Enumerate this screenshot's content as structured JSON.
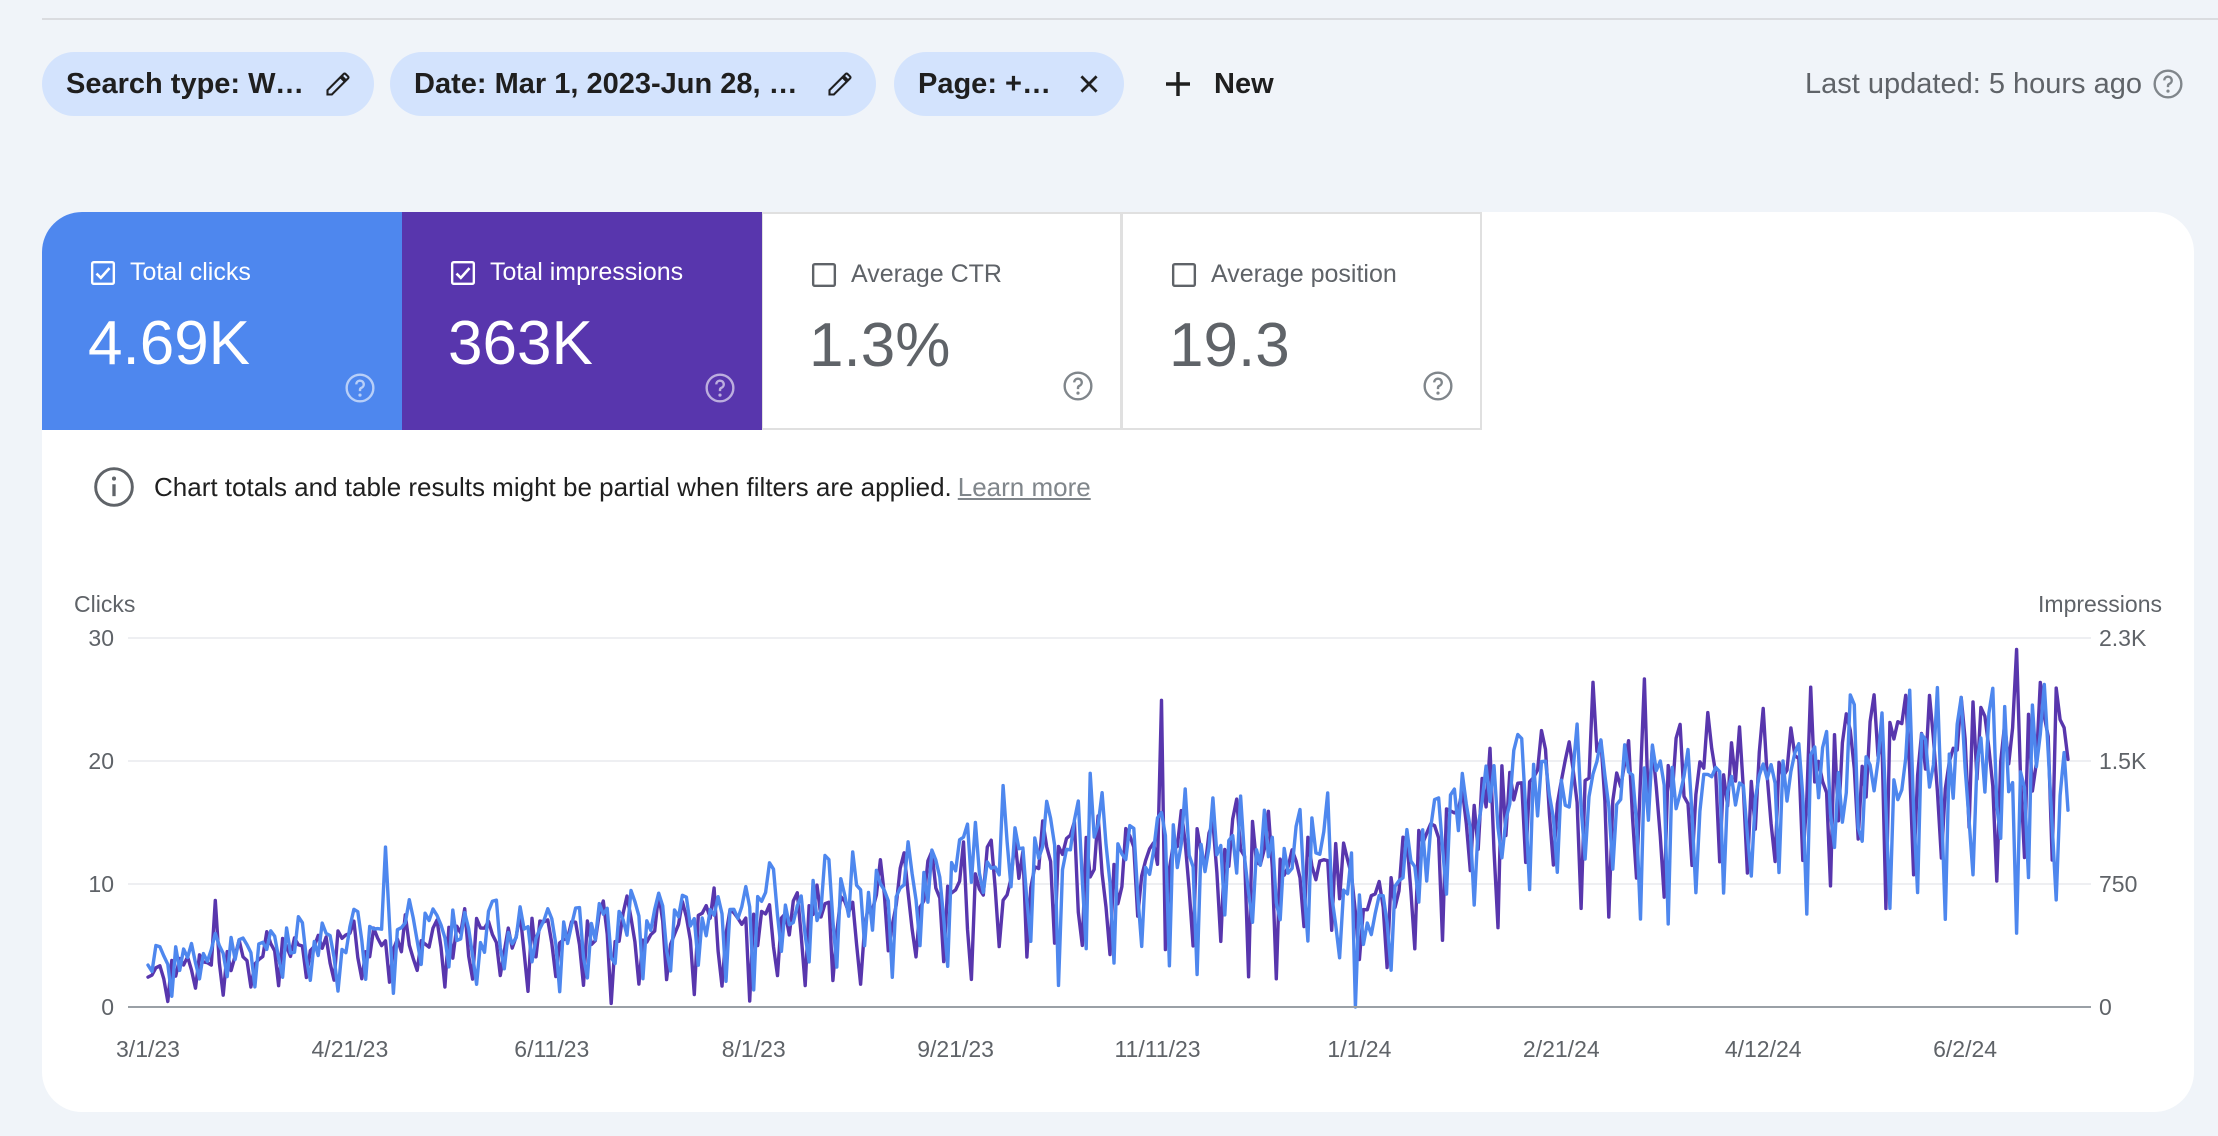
{
  "filters": {
    "search_type": "Search type: Web",
    "date": "Date: Mar 1, 2023-Jun 28, 2...",
    "page": "Page: +faq",
    "new_label": "New"
  },
  "last_updated": "Last updated: 5 hours ago",
  "metrics": [
    {
      "label": "Total clicks",
      "value": "4.69K",
      "checked": true,
      "color": "#4e87ee"
    },
    {
      "label": "Total impressions",
      "value": "363K",
      "checked": true,
      "color": "#5836ad"
    },
    {
      "label": "Average CTR",
      "value": "1.3%",
      "checked": false
    },
    {
      "label": "Average position",
      "value": "19.3",
      "checked": false
    }
  ],
  "notice": {
    "text": "Chart totals and table results might be partial when filters are applied.",
    "link": "Learn more"
  },
  "chart_data": {
    "type": "line",
    "left_axis": {
      "title": "Clicks",
      "ticks": [
        "0",
        "10",
        "20",
        "30"
      ],
      "ylim": [
        0,
        30
      ]
    },
    "right_axis": {
      "title": "Impressions",
      "ticks": [
        "0",
        "750",
        "1.5K",
        "2.3K"
      ],
      "ylim": [
        0,
        2250
      ]
    },
    "x_tick_labels": [
      "3/1/23",
      "4/21/23",
      "6/11/23",
      "8/1/23",
      "9/21/23",
      "11/11/23",
      "1/1/24",
      "2/21/24",
      "4/12/24",
      "6/2/24"
    ],
    "x_tick_days": [
      0,
      51,
      102,
      153,
      204,
      255,
      306,
      357,
      408,
      459
    ],
    "num_days": 486,
    "series": [
      {
        "name": "Total clicks",
        "axis": "left",
        "color": "#4e87ee",
        "anchors": [
          [
            0,
            3
          ],
          [
            30,
            4
          ],
          [
            60,
            5
          ],
          [
            90,
            5
          ],
          [
            120,
            5
          ],
          [
            150,
            6
          ],
          [
            180,
            7
          ],
          [
            210,
            9
          ],
          [
            240,
            10
          ],
          [
            270,
            10
          ],
          [
            300,
            10
          ],
          [
            310,
            6
          ],
          [
            330,
            14
          ],
          [
            360,
            16
          ],
          [
            390,
            15
          ],
          [
            420,
            16
          ],
          [
            450,
            17
          ],
          [
            480,
            17
          ],
          [
            486,
            15
          ]
        ],
        "amplitude": [
          [
            0,
            1.5
          ],
          [
            60,
            2.5
          ],
          [
            150,
            3.5
          ],
          [
            200,
            5
          ],
          [
            300,
            5.5
          ],
          [
            310,
            3
          ],
          [
            330,
            5
          ],
          [
            486,
            7
          ]
        ],
        "peaks": [
          [
            2,
            5
          ],
          [
            60,
            13
          ],
          [
            209,
            15
          ],
          [
            216,
            18
          ],
          [
            238,
            19
          ],
          [
            269,
            17
          ],
          [
            305,
            0
          ],
          [
            301,
            4
          ],
          [
            326,
            17
          ],
          [
            361,
            23
          ],
          [
            382,
            20
          ],
          [
            413,
            20
          ],
          [
            457,
            23
          ],
          [
            472,
            6
          ]
        ],
        "last_value": 16
      },
      {
        "name": "Total impressions",
        "axis": "right",
        "color": "#5836ad",
        "anchors": [
          [
            0,
            150
          ],
          [
            30,
            250
          ],
          [
            60,
            320
          ],
          [
            90,
            330
          ],
          [
            120,
            350
          ],
          [
            150,
            400
          ],
          [
            180,
            450
          ],
          [
            210,
            600
          ],
          [
            240,
            700
          ],
          [
            270,
            760
          ],
          [
            300,
            700
          ],
          [
            310,
            500
          ],
          [
            330,
            980
          ],
          [
            360,
            1200
          ],
          [
            390,
            1150
          ],
          [
            420,
            1200
          ],
          [
            450,
            1300
          ],
          [
            480,
            1400
          ],
          [
            486,
            1510
          ]
        ],
        "amplitude": [
          [
            0,
            100
          ],
          [
            60,
            180
          ],
          [
            150,
            250
          ],
          [
            200,
            330
          ],
          [
            300,
            370
          ],
          [
            310,
            200
          ],
          [
            330,
            380
          ],
          [
            486,
            520
          ]
        ],
        "peaks": [
          [
            17,
            650
          ],
          [
            221,
            950
          ],
          [
            256,
            1870
          ],
          [
            365,
            1980
          ],
          [
            378,
            2000
          ],
          [
            420,
            1950
          ],
          [
            450,
            1900
          ],
          [
            472,
            2180
          ],
          [
            480,
            1650
          ]
        ],
        "last_value": 1510
      }
    ]
  }
}
